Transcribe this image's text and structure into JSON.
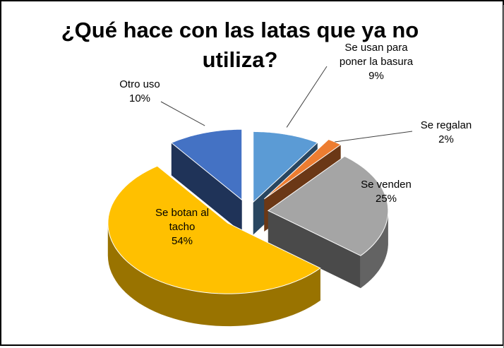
{
  "chart_data": {
    "type": "pie",
    "title_line1": "¿Qué hace con las latas que ya no",
    "title_line2": "utiliza?",
    "slices": [
      {
        "label_lines": [
          "Se usan para",
          "poner la basura"
        ],
        "value": 9,
        "value_text": "9%",
        "color": "#5b9bd5"
      },
      {
        "label_lines": [
          "Se regalan"
        ],
        "value": 2,
        "value_text": "2%",
        "color": "#ed7d31"
      },
      {
        "label_lines": [
          "Se venden"
        ],
        "value": 25,
        "value_text": "25%",
        "color": "#a5a5a5"
      },
      {
        "label_lines": [
          "Se botan al",
          "tacho"
        ],
        "value": 54,
        "value_text": "54%",
        "color": "#ffc000"
      },
      {
        "label_lines": [
          "Otro uso"
        ],
        "value": 10,
        "value_text": "10%",
        "color": "#4472c4"
      }
    ],
    "style": "3d-exploded"
  }
}
